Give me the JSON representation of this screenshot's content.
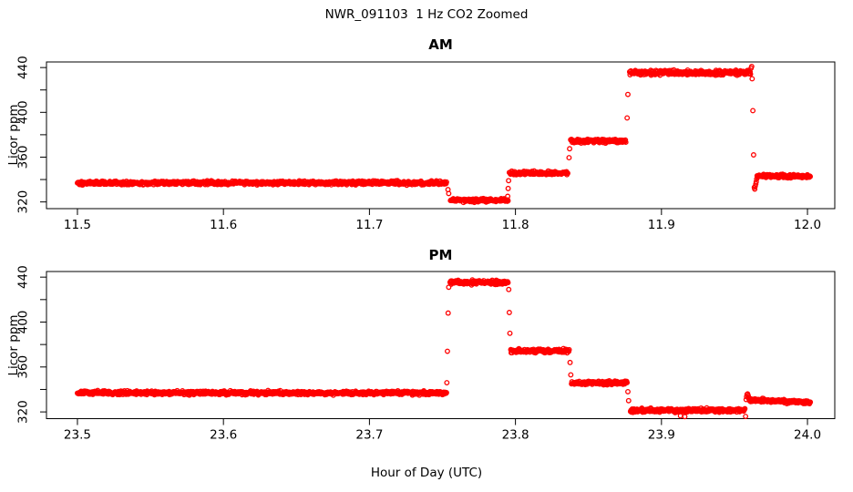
{
  "figure": {
    "title": "NWR_091103  1 Hz CO2 Zoomed",
    "xlabel": "Hour of Day (UTC)",
    "marker": "open-circle",
    "marker_color": "#FF0000",
    "axis_color": "#000000",
    "background": "#FFFFFF",
    "sample_rate_hz": 1
  },
  "chart_data": [
    {
      "type": "scatter",
      "title": "AM",
      "xlabel": "",
      "ylabel": "Licor ppm",
      "xlim": [
        11.4788,
        12.0187
      ],
      "ylim": [
        314,
        445
      ],
      "grid": false,
      "legend": null,
      "xtick_values": [
        11.5,
        11.6,
        11.7,
        11.8,
        11.9,
        12.0
      ],
      "xtick_labels": [
        "11.5",
        "11.6",
        "11.7",
        "11.8",
        "11.9",
        "12.0"
      ],
      "ytick_values": [
        320,
        340,
        360,
        380,
        400,
        420,
        440
      ],
      "ytick_labels": [
        "320",
        "",
        "360",
        "",
        "400",
        "",
        "440"
      ],
      "segment_format": [
        "t_start_hr",
        "t_end_hr",
        "ppm_start",
        "ppm_end",
        "jitter_ppm"
      ],
      "segments": [
        [
          11.5,
          11.753,
          337.0,
          337.0,
          1.6
        ],
        [
          11.7555,
          11.795,
          321.4,
          321.4,
          1.5
        ],
        [
          11.7958,
          11.836,
          345.8,
          345.8,
          1.5
        ],
        [
          11.8378,
          11.8758,
          374.5,
          374.5,
          1.6
        ],
        [
          11.8782,
          11.9612,
          435.4,
          435.4,
          1.9
        ],
        [
          11.9655,
          12.002,
          343.0,
          343.0,
          1.5
        ]
      ],
      "transition_points": [
        [
          11.7538,
          331.0
        ],
        [
          11.7543,
          327.5
        ],
        [
          11.7947,
          325.0
        ],
        [
          11.795,
          332.0
        ],
        [
          11.7953,
          339.0
        ],
        [
          11.8367,
          359.5
        ],
        [
          11.8371,
          367.5
        ],
        [
          11.8765,
          395.0
        ],
        [
          11.877,
          416.0
        ],
        [
          11.9614,
          439.5
        ],
        [
          11.9618,
          441.0
        ],
        [
          11.9621,
          430.0
        ],
        [
          11.9626,
          401.5
        ],
        [
          11.9631,
          362.0
        ],
        [
          11.9636,
          333.0
        ],
        [
          11.9639,
          331.5
        ],
        [
          11.9642,
          334.0
        ],
        [
          11.9646,
          336.0
        ],
        [
          11.9649,
          338.0
        ],
        [
          11.9652,
          340.5
        ]
      ]
    },
    {
      "type": "scatter",
      "title": "PM",
      "xlabel": "",
      "ylabel": "Licor ppm",
      "xlim": [
        23.4788,
        24.0187
      ],
      "ylim": [
        314,
        445
      ],
      "grid": false,
      "legend": null,
      "xtick_values": [
        23.5,
        23.6,
        23.7,
        23.8,
        23.9,
        24.0
      ],
      "xtick_labels": [
        "23.5",
        "23.6",
        "23.7",
        "23.8",
        "23.9",
        "24.0"
      ],
      "ytick_values": [
        320,
        340,
        360,
        380,
        400,
        420,
        440
      ],
      "ytick_labels": [
        "320",
        "",
        "360",
        "",
        "400",
        "",
        "440"
      ],
      "segment_format": [
        "t_start_hr",
        "t_end_hr",
        "ppm_start",
        "ppm_end",
        "jitter_ppm"
      ],
      "segments": [
        [
          23.5,
          23.753,
          337.0,
          337.0,
          1.6
        ],
        [
          23.7552,
          23.795,
          435.4,
          435.4,
          1.9
        ],
        [
          23.7968,
          23.837,
          374.3,
          374.3,
          1.6
        ],
        [
          23.8384,
          23.8765,
          345.8,
          345.8,
          1.5
        ],
        [
          23.8788,
          23.9572,
          321.4,
          321.4,
          1.6
        ],
        [
          23.96,
          24.002,
          330.8,
          328.5,
          1.4
        ]
      ],
      "transition_points": [
        [
          23.753,
          346.0
        ],
        [
          23.7534,
          374.0
        ],
        [
          23.7539,
          408.0
        ],
        [
          23.7543,
          431.0
        ],
        [
          23.7954,
          429.0
        ],
        [
          23.7958,
          408.5
        ],
        [
          23.7962,
          390.0
        ],
        [
          23.8374,
          364.0
        ],
        [
          23.8379,
          353.0
        ],
        [
          23.877,
          338.0
        ],
        [
          23.8775,
          330.0
        ],
        [
          23.913,
          316.5
        ],
        [
          23.916,
          315.8
        ],
        [
          23.9576,
          316.0
        ],
        [
          23.958,
          331.0
        ],
        [
          23.9583,
          333.5
        ],
        [
          23.9586,
          335.5
        ],
        [
          23.959,
          336.0
        ],
        [
          23.9594,
          334.5
        ]
      ]
    }
  ]
}
